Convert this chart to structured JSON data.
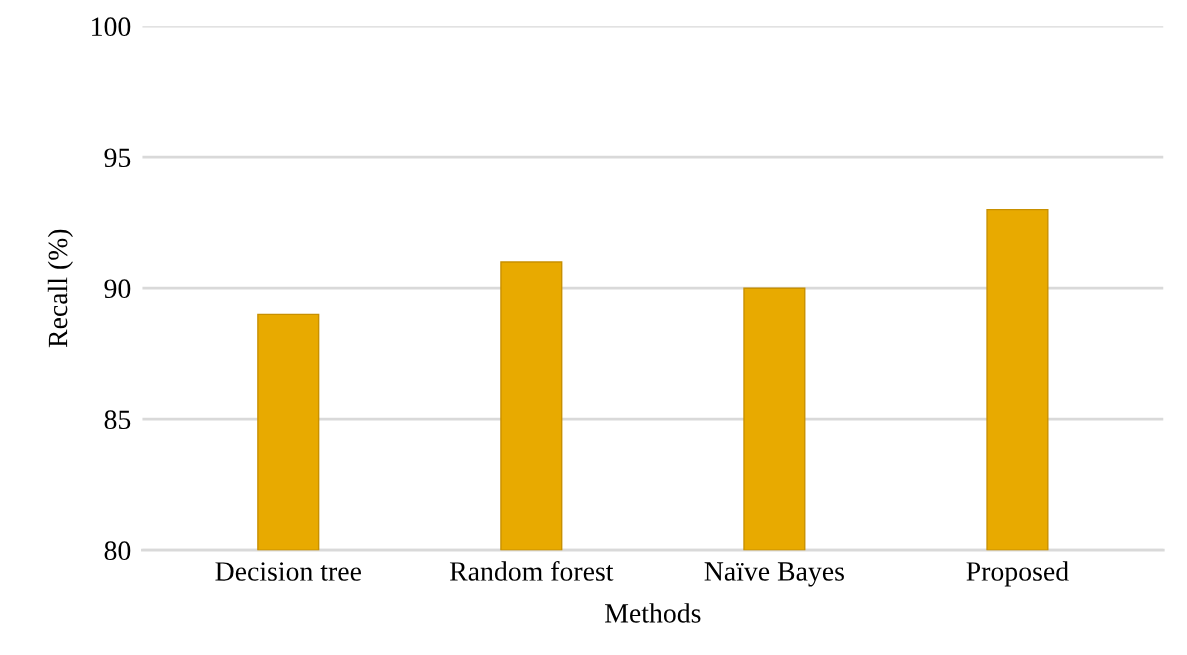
{
  "chart_data": {
    "type": "bar",
    "xlabel": "Methods",
    "ylabel": "Recall (%)",
    "categories": [
      "Decision tree",
      "Random forest",
      "Naïve Bayes",
      "Proposed"
    ],
    "values": [
      89,
      91,
      90,
      93
    ],
    "color": "#e8aa00",
    "ylim": [
      80,
      100
    ],
    "yticks": [
      80,
      85,
      90,
      95,
      100
    ],
    "grid": "y"
  }
}
